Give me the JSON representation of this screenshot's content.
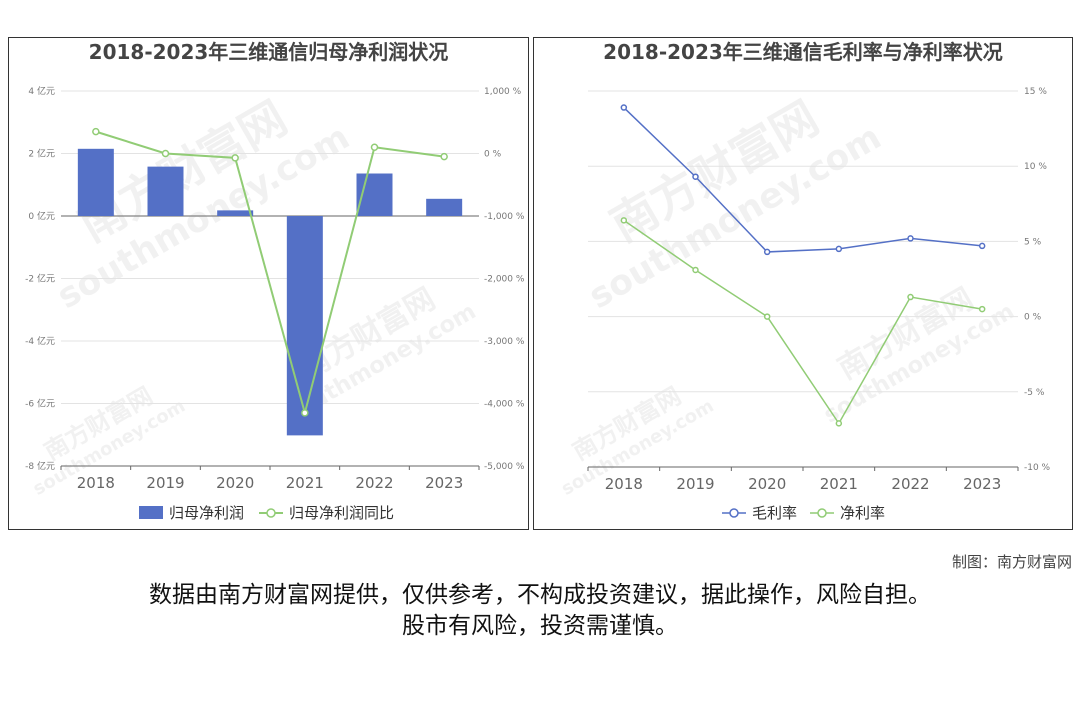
{
  "credit": "制图：南方财富网",
  "disclaimer_line1": "数据由南方财富网提供，仅供参考，不构成投资建议，据此操作，风险自担。",
  "disclaimer_line2": "股市有风险，投资需谨慎。",
  "watermark": {
    "cn": "南方财富网",
    "en": "southmoney.com"
  },
  "chart_data": [
    {
      "type": "bar",
      "title": "2018-2023年三维通信归母净利润状况",
      "categories": [
        "2018",
        "2019",
        "2020",
        "2021",
        "2022",
        "2023"
      ],
      "series": [
        {
          "name": "归母净利润",
          "type": "bar",
          "axis": "left",
          "color": "#5470c6",
          "values": [
            2.15,
            1.58,
            0.18,
            -7.02,
            1.36,
            0.55
          ]
        },
        {
          "name": "归母净利润同比",
          "type": "line",
          "axis": "right",
          "color": "#91cc75",
          "values": [
            350,
            0,
            -70,
            -4150,
            100,
            -50
          ]
        }
      ],
      "y_left": {
        "min": -8,
        "max": 4,
        "step": 2,
        "unit": "亿元",
        "ticks": [
          "4 亿元",
          "2 亿元",
          "0 亿元",
          "-2 亿元",
          "-4 亿元",
          "-6 亿元",
          "-8 亿元"
        ]
      },
      "y_right": {
        "min": -5000,
        "max": 1000,
        "step": 1000,
        "ticks": [
          "1,000 %",
          "0 %",
          "-1,000 %",
          "-2,000 %",
          "-3,000 %",
          "-4,000 %",
          "-5,000 %"
        ]
      },
      "legend_position": "bottom-center",
      "grid": true
    },
    {
      "type": "line",
      "title": "2018-2023年三维通信毛利率与净利率状况",
      "categories": [
        "2018",
        "2019",
        "2020",
        "2021",
        "2022",
        "2023"
      ],
      "series": [
        {
          "name": "毛利率",
          "color": "#5470c6",
          "values": [
            13.9,
            9.3,
            4.3,
            4.5,
            5.2,
            4.7
          ]
        },
        {
          "name": "净利率",
          "color": "#91cc75",
          "values": [
            6.4,
            3.1,
            0.0,
            -7.1,
            1.3,
            0.5
          ]
        }
      ],
      "y_right": {
        "min": -10,
        "max": 15,
        "step": 5,
        "ticks": [
          "15 %",
          "10 %",
          "5 %",
          "0 %",
          "-5 %",
          "-10 %"
        ]
      },
      "legend_position": "bottom-center",
      "grid": true
    }
  ]
}
